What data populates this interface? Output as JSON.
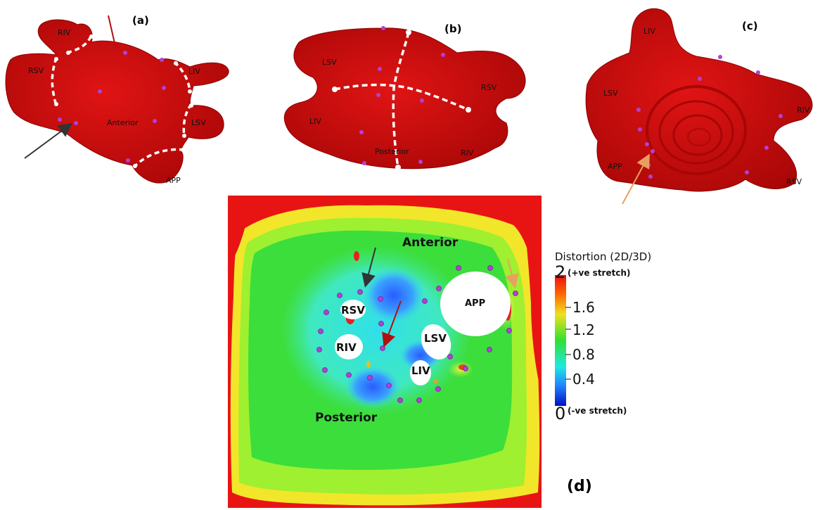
{
  "panels": {
    "a": {
      "label": "(a)",
      "veins": {
        "riv": "RIV",
        "rsv": "RSV",
        "liv": "LIV",
        "lsv": "LSV",
        "app": "APP"
      },
      "region": "Anterior"
    },
    "b": {
      "label": "(b)",
      "veins": {
        "lsv": "LSV",
        "rsv": "RSV",
        "liv": "LIV",
        "riv": "RIV"
      },
      "region": "Posterior"
    },
    "c": {
      "label": "(c)",
      "veins": {
        "liv": "LIV",
        "lsv": "LSV",
        "riv": "RIV",
        "app": "APP",
        "rsv": "RSV"
      }
    },
    "d": {
      "label": "(d)",
      "holes": {
        "rsv": "RSV",
        "riv": "RIV",
        "lsv": "LSV",
        "liv": "LIV",
        "app": "APP"
      },
      "regions": {
        "anterior": "Anterior",
        "posterior": "Posterior"
      }
    }
  },
  "colorbar": {
    "title": "Distortion (2D/3D)",
    "max_label": "2",
    "max_note": "(+ve stretch)",
    "min_label": "0",
    "min_note": "(-ve stretch)",
    "ticks": [
      "1.6",
      "1.2",
      "0.8",
      "0.4"
    ]
  },
  "colors": {
    "atrium": "#d90d0d",
    "landmark": "#b040d8",
    "arrow_black": "#333333",
    "arrow_red": "#b01010",
    "arrow_orange": "#e8a060"
  }
}
